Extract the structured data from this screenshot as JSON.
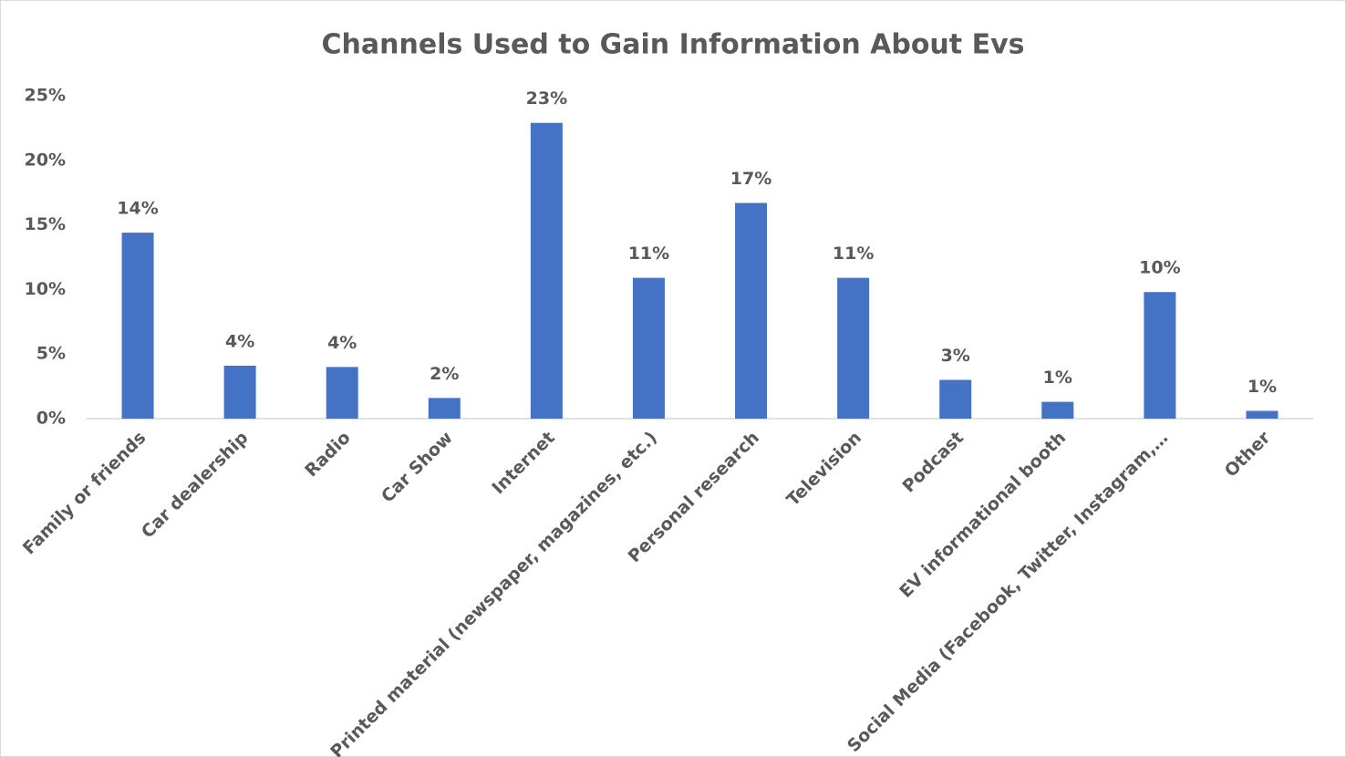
{
  "chart_data": {
    "type": "bar",
    "title": "Channels Used to Gain Information About Evs",
    "categories": [
      "Family or friends",
      "Car dealership",
      "Radio",
      "Car Show",
      "Internet",
      "Printed material (newspaper, magazines, etc.)",
      "Personal research",
      "Television",
      "Podcast",
      "EV informational booth",
      "Social Media (Facebook, Twitter, Instagram,…",
      "Other"
    ],
    "values": [
      14.4,
      4.1,
      4.0,
      1.6,
      22.9,
      10.9,
      16.7,
      10.9,
      3.0,
      1.3,
      9.8,
      0.6
    ],
    "value_labels": [
      "14%",
      "4%",
      "4%",
      "2%",
      "23%",
      "11%",
      "17%",
      "11%",
      "3%",
      "1%",
      "10%",
      "1%"
    ],
    "color": "#4472c4",
    "ylim": [
      0,
      25
    ],
    "yticks": [
      {
        "value": 0,
        "label": "0%"
      },
      {
        "value": 5,
        "label": "5%"
      },
      {
        "value": 10,
        "label": "10%"
      },
      {
        "value": 15,
        "label": "15%"
      },
      {
        "value": 20,
        "label": "20%"
      },
      {
        "value": 25,
        "label": "25%"
      }
    ],
    "grid": false
  }
}
